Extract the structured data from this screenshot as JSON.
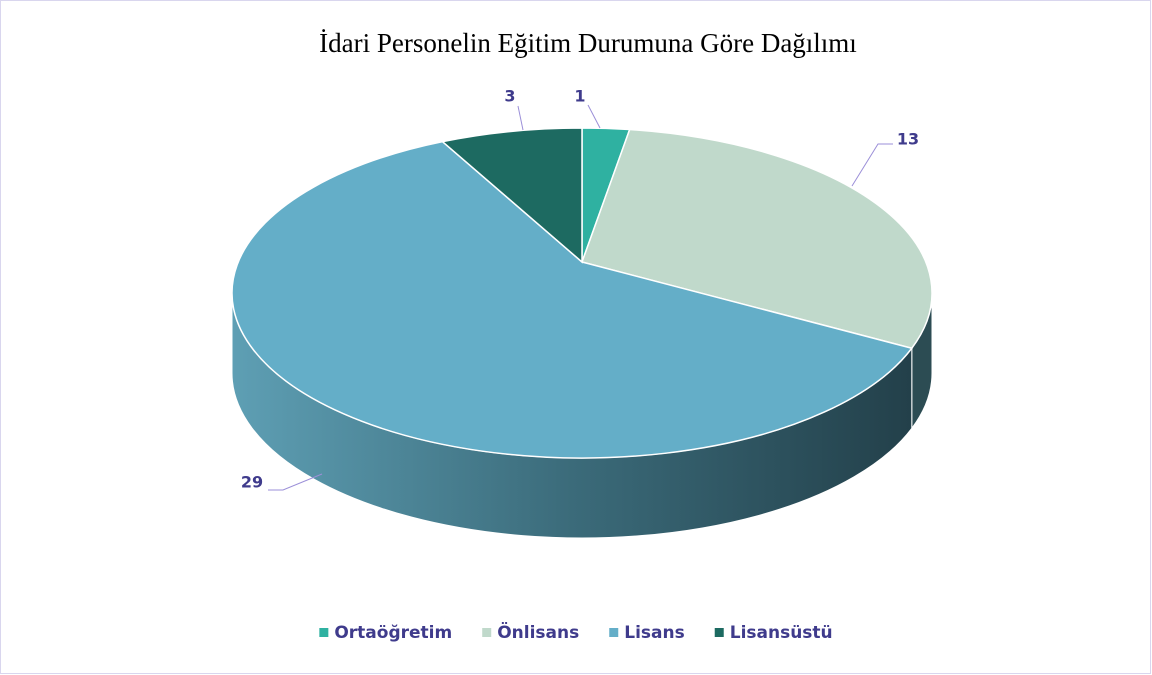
{
  "chart_data": {
    "type": "pie",
    "title": "İdari Personelin Eğitim Durumuna Göre Dağılımı",
    "categories": [
      "Ortaöğretim",
      "Önlisans",
      "Lisans",
      "Lisansüstü"
    ],
    "values": [
      1,
      13,
      29,
      3
    ],
    "colors": [
      "#2fb1a1",
      "#c0d9cb",
      "#64aec8",
      "#1d6a61"
    ],
    "legend": "bottom"
  }
}
